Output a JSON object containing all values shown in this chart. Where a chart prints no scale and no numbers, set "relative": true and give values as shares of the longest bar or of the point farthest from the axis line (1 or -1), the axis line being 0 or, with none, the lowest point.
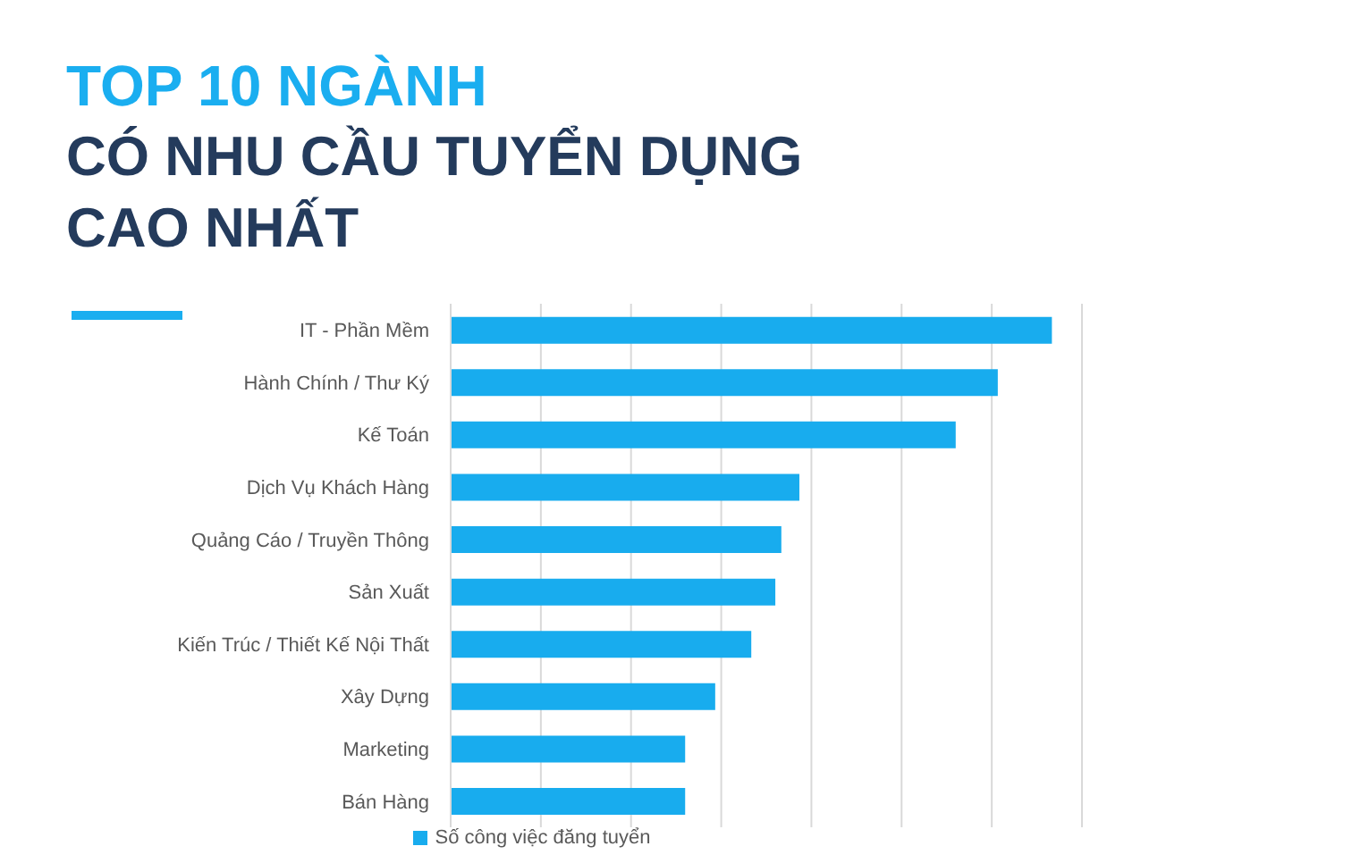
{
  "chart_data": {
    "type": "bar",
    "orientation": "horizontal",
    "relative": true,
    "title": "TOP 10 NGÀNH",
    "subtitle": "CÓ NHU CẦU TUYỂN DỤNG CAO NHẤT",
    "categories": [
      "IT - Phần Mềm",
      "Hành Chính / Thư Ký",
      "Kế Toán",
      "Dịch Vụ Khách Hàng",
      "Quảng Cáo / Truyền Thông",
      "Sản Xuất",
      "Kiến Trúc / Thiết Kế Nội Thất",
      "Xây Dựng",
      "Marketing",
      "Bán Hàng"
    ],
    "series": [
      {
        "name": "Số công việc đăng tuyển",
        "color": "#18acee",
        "values": [
          1,
          0.91,
          0.84,
          0.58,
          0.55,
          0.54,
          0.5,
          0.44,
          0.39,
          0.39
        ]
      }
    ],
    "grid": "x",
    "legend": "bottom"
  }
}
